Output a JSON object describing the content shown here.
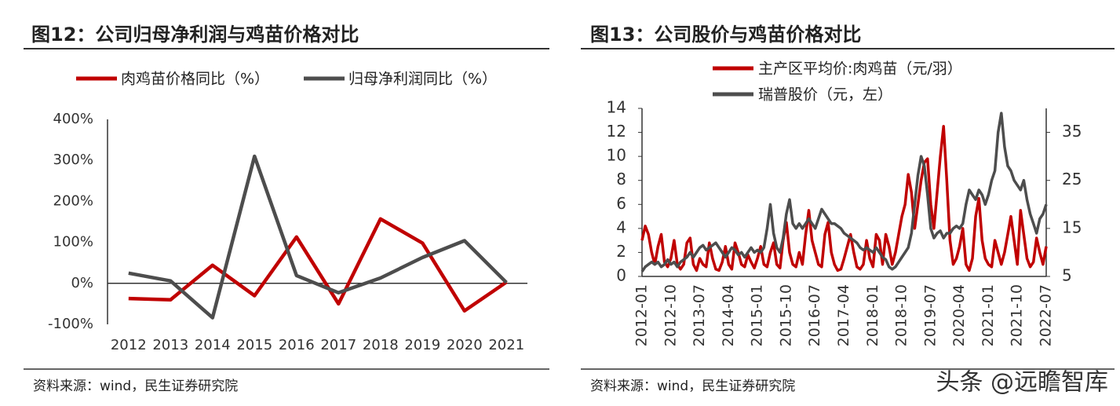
{
  "chart_data": [
    {
      "type": "line",
      "title": "图12：公司归母净利润与鸡苗价格对比",
      "categories": [
        "2012",
        "2013",
        "2014",
        "2015",
        "2016",
        "2017",
        "2018",
        "2019",
        "2020",
        "2021"
      ],
      "series": [
        {
          "name": "肉鸡苗价格同比（%）",
          "color": "#c00000",
          "values": [
            -37,
            -40,
            44,
            -30,
            113,
            -50,
            157,
            98,
            -67,
            3
          ]
        },
        {
          "name": "归母净利润同比（%）",
          "color": "#4d4d4d",
          "values": [
            25,
            6,
            -84,
            310,
            19,
            -23,
            13,
            63,
            104,
            2
          ]
        }
      ],
      "ylim": [
        -100,
        400
      ],
      "yticks": [
        {
          "value": -100,
          "label": "-100%"
        },
        {
          "value": 0,
          "label": "0%"
        },
        {
          "value": 100,
          "label": "100%"
        },
        {
          "value": 200,
          "label": "200%"
        },
        {
          "value": 300,
          "label": "300%"
        },
        {
          "value": 400,
          "label": "400%"
        }
      ],
      "grid": false,
      "legend": "top",
      "source": "资料来源：wind，民生证券研究院"
    },
    {
      "type": "line",
      "title": "图13：公司股价与鸡苗价格对比",
      "x": [
        "2012-01",
        "2012-02",
        "2012-03",
        "2012-04",
        "2012-05",
        "2012-06",
        "2012-07",
        "2012-08",
        "2012-09",
        "2012-10",
        "2012-11",
        "2012-12",
        "2013-01",
        "2013-02",
        "2013-03",
        "2013-04",
        "2013-05",
        "2013-06",
        "2013-07",
        "2013-08",
        "2013-09",
        "2013-10",
        "2013-11",
        "2013-12",
        "2014-01",
        "2014-02",
        "2014-03",
        "2014-04",
        "2014-05",
        "2014-06",
        "2014-07",
        "2014-08",
        "2014-09",
        "2014-10",
        "2014-11",
        "2014-12",
        "2015-01",
        "2015-02",
        "2015-03",
        "2015-04",
        "2015-05",
        "2015-06",
        "2015-07",
        "2015-08",
        "2015-09",
        "2015-10",
        "2015-11",
        "2015-12",
        "2016-01",
        "2016-02",
        "2016-03",
        "2016-04",
        "2016-05",
        "2016-06",
        "2016-07",
        "2016-08",
        "2016-09",
        "2016-10",
        "2016-11",
        "2016-12",
        "2017-01",
        "2017-02",
        "2017-03",
        "2017-04",
        "2017-05",
        "2017-06",
        "2017-07",
        "2017-08",
        "2017-09",
        "2017-10",
        "2017-11",
        "2017-12",
        "2018-01",
        "2018-02",
        "2018-03",
        "2018-04",
        "2018-05",
        "2018-06",
        "2018-07",
        "2018-08",
        "2018-09",
        "2018-10",
        "2018-11",
        "2018-12",
        "2019-01",
        "2019-02",
        "2019-03",
        "2019-04",
        "2019-05",
        "2019-06",
        "2019-07",
        "2019-08",
        "2019-09",
        "2019-10",
        "2019-11",
        "2019-12",
        "2020-01",
        "2020-02",
        "2020-03",
        "2020-04",
        "2020-05",
        "2020-06",
        "2020-07",
        "2020-08",
        "2020-09",
        "2020-10",
        "2020-11",
        "2020-12",
        "2021-01",
        "2021-02",
        "2021-03",
        "2021-04",
        "2021-05",
        "2021-06",
        "2021-07",
        "2021-08",
        "2021-09",
        "2021-10",
        "2021-11",
        "2021-12",
        "2022-01",
        "2022-02",
        "2022-03",
        "2022-04",
        "2022-05",
        "2022-06",
        "2022-07"
      ],
      "series": [
        {
          "name": "主产区平均价:肉鸡苗（元/羽）",
          "color": "#c00000",
          "values": [
            3.0,
            4.2,
            3.5,
            2.0,
            1.0,
            2.5,
            3.5,
            1.2,
            0.8,
            1.5,
            3.0,
            1.0,
            0.6,
            1.0,
            2.8,
            3.2,
            1.0,
            0.5,
            1.5,
            1.0,
            0.8,
            2.8,
            1.5,
            0.6,
            0.5,
            1.2,
            2.5,
            1.0,
            0.6,
            2.8,
            2.0,
            1.0,
            0.8,
            1.8,
            1.2,
            0.7,
            1.5,
            2.5,
            1.0,
            0.8,
            2.0,
            2.8,
            1.0,
            0.7,
            3.0,
            4.5,
            2.0,
            1.0,
            0.8,
            2.0,
            1.0,
            3.5,
            5.5,
            3.0,
            2.0,
            1.0,
            0.8,
            3.5,
            4.5,
            2.0,
            1.0,
            0.5,
            0.6,
            1.5,
            2.5,
            3.5,
            2.0,
            0.8,
            0.6,
            1.0,
            3.0,
            1.5,
            0.8,
            3.5,
            3.0,
            1.0,
            3.5,
            2.5,
            1.0,
            2.0,
            3.5,
            5.0,
            6.0,
            8.5,
            7.0,
            4.0,
            6.0,
            8.0,
            9.5,
            9.8,
            6.0,
            4.0,
            7.0,
            10.0,
            12.5,
            8.0,
            3.0,
            1.0,
            1.5,
            2.5,
            4.0,
            1.0,
            0.5,
            1.5,
            5.0,
            6.5,
            3.0,
            1.5,
            1.0,
            0.8,
            3.0,
            2.0,
            1.0,
            2.0,
            3.5,
            5.0,
            3.0,
            1.0,
            5.5,
            3.5,
            1.5,
            0.8,
            1.2,
            3.2,
            2.0,
            1.0,
            2.5
          ]
        },
        {
          "name": "瑞普股价（元，左）",
          "color": "#4d4d4d",
          "axis": "y2",
          "values": [
            6,
            7,
            7.5,
            8,
            7.5,
            8,
            7,
            7.5,
            8.5,
            7.5,
            8,
            7,
            8,
            8.5,
            9,
            10,
            9,
            10,
            11,
            11.5,
            10.5,
            11,
            11.5,
            12,
            11,
            10,
            9,
            10,
            11,
            10.5,
            9.5,
            10,
            9,
            10,
            11,
            10,
            10.5,
            10,
            11,
            15,
            20,
            14,
            11,
            10,
            13,
            18,
            21,
            16,
            15,
            16,
            15,
            16,
            17,
            16,
            15,
            17,
            19,
            18,
            17,
            16,
            16,
            15.5,
            15,
            14,
            13.5,
            13,
            12.5,
            12,
            11,
            10.5,
            11,
            10.5,
            10,
            11,
            10,
            9,
            8.5,
            7,
            6.5,
            7,
            8,
            9,
            10,
            11,
            14,
            20,
            26,
            30,
            28,
            22,
            15,
            13,
            14,
            14.5,
            13,
            14,
            14,
            15,
            15.5,
            15,
            16,
            20,
            23,
            22,
            21,
            23,
            22,
            20,
            22,
            25,
            27,
            35,
            39,
            32,
            28,
            27,
            25,
            24,
            23,
            25,
            21,
            18,
            16,
            14,
            17,
            18,
            20
          ]
        }
      ],
      "xlim": [
        "2012-01",
        "2022-07"
      ],
      "xticks": [
        "2012-01",
        "2012-10",
        "2013-07",
        "2014-04",
        "2015-01",
        "2015-10",
        "2016-07",
        "2017-04",
        "2018-01",
        "2018-10",
        "2019-07",
        "2020-04",
        "2021-01",
        "2021-10",
        "2022-07"
      ],
      "ylim": [
        0,
        14
      ],
      "yticks": [
        0,
        2,
        4,
        6,
        8,
        10,
        12,
        14
      ],
      "y2lim": [
        5,
        40
      ],
      "y2ticks": [
        5,
        15,
        25,
        35
      ],
      "grid": false,
      "legend": "top",
      "source": "资料来源：wind，民生证券研究院"
    }
  ],
  "watermark": "头条 @远瞻智库"
}
